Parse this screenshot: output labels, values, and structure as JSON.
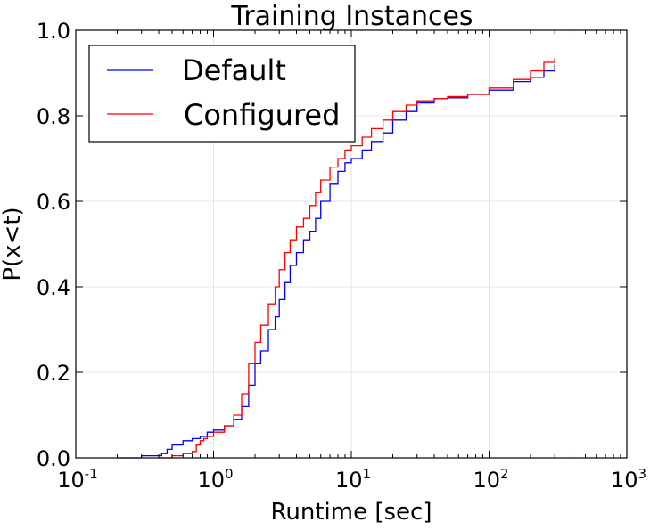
{
  "chart_data": {
    "type": "line",
    "title": "Training Instances",
    "xlabel": "Runtime [sec]",
    "ylabel": "P(x<t)",
    "xscale": "log",
    "xlim": [
      0.1,
      1000
    ],
    "ylim": [
      0.0,
      1.0
    ],
    "grid": true,
    "legend_position": "top-left",
    "x_ticks": [
      {
        "value": 0.1,
        "base": "10",
        "exp": "-1"
      },
      {
        "value": 1,
        "base": "10",
        "exp": "0"
      },
      {
        "value": 10,
        "base": "10",
        "exp": "1"
      },
      {
        "value": 100,
        "base": "10",
        "exp": "2"
      },
      {
        "value": 1000,
        "base": "10",
        "exp": "3"
      }
    ],
    "y_ticks": [
      {
        "value": 0.0,
        "label": "0.0"
      },
      {
        "value": 0.2,
        "label": "0.2"
      },
      {
        "value": 0.4,
        "label": "0.4"
      },
      {
        "value": 0.6,
        "label": "0.6"
      },
      {
        "value": 0.8,
        "label": "0.8"
      },
      {
        "value": 1.0,
        "label": "1.0"
      }
    ],
    "series": [
      {
        "name": "Default",
        "color": "#0000ff",
        "x": [
          0.2,
          0.3,
          0.42,
          0.46,
          0.5,
          0.6,
          0.7,
          0.8,
          0.9,
          1.0,
          1.2,
          1.4,
          1.6,
          1.8,
          2.0,
          2.2,
          2.5,
          2.8,
          3.0,
          3.3,
          3.6,
          4.0,
          4.5,
          5.0,
          5.5,
          6.0,
          7.0,
          8.0,
          9.0,
          10.0,
          12.0,
          14.0,
          17.0,
          20.0,
          25.0,
          30.0,
          40.0,
          50.0,
          70.0,
          100.0,
          150.0,
          200.0,
          250.0,
          300.0
        ],
        "y": [
          0.0,
          0.005,
          0.01,
          0.02,
          0.03,
          0.04,
          0.045,
          0.05,
          0.06,
          0.065,
          0.075,
          0.09,
          0.12,
          0.17,
          0.22,
          0.25,
          0.3,
          0.33,
          0.37,
          0.41,
          0.45,
          0.48,
          0.51,
          0.53,
          0.56,
          0.6,
          0.64,
          0.67,
          0.69,
          0.7,
          0.72,
          0.74,
          0.76,
          0.79,
          0.81,
          0.83,
          0.84,
          0.842,
          0.85,
          0.86,
          0.88,
          0.89,
          0.905,
          0.92
        ]
      },
      {
        "name": "Configured",
        "color": "#ff0000",
        "x": [
          0.4,
          0.5,
          0.6,
          0.7,
          0.75,
          0.8,
          0.85,
          0.9,
          1.0,
          1.2,
          1.4,
          1.6,
          1.8,
          2.0,
          2.2,
          2.5,
          2.8,
          3.0,
          3.3,
          3.6,
          4.0,
          4.5,
          5.0,
          5.5,
          6.0,
          7.0,
          8.0,
          9.0,
          10.0,
          12.0,
          14.0,
          17.0,
          20.0,
          25.0,
          30.0,
          40.0,
          50.0,
          70.0,
          100.0,
          150.0,
          200.0,
          250.0,
          300.0
        ],
        "y": [
          0.0,
          0.005,
          0.01,
          0.015,
          0.03,
          0.04,
          0.045,
          0.05,
          0.06,
          0.075,
          0.1,
          0.15,
          0.22,
          0.27,
          0.31,
          0.36,
          0.4,
          0.44,
          0.48,
          0.51,
          0.54,
          0.56,
          0.59,
          0.62,
          0.65,
          0.68,
          0.7,
          0.72,
          0.73,
          0.75,
          0.77,
          0.79,
          0.81,
          0.825,
          0.835,
          0.84,
          0.845,
          0.85,
          0.865,
          0.885,
          0.905,
          0.925,
          0.935
        ]
      }
    ]
  }
}
